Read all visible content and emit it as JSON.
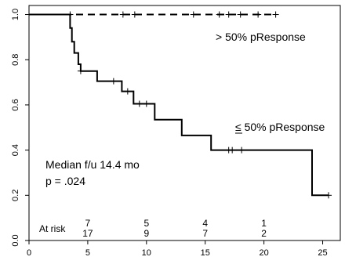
{
  "chart_data": {
    "type": "line",
    "xlim": [
      0,
      26.5
    ],
    "ylim": [
      0,
      1.04
    ],
    "x_ticks": [
      0,
      5,
      10,
      15,
      20,
      25
    ],
    "y_ticks": [
      0.0,
      0.2,
      0.4,
      0.6,
      0.8,
      1.0
    ],
    "x_tick_labels": [
      "0",
      "5",
      "10",
      "15",
      "20",
      "25"
    ],
    "y_tick_labels": [
      "0.0",
      "0.2",
      "0.4",
      "0.6",
      "0.8",
      "1.0"
    ],
    "grid": false,
    "series": [
      {
        "name": "> 50% pResponse",
        "style": "dashed",
        "color": "#000000",
        "steps": [
          [
            0,
            1.0
          ],
          [
            21,
            1.0
          ]
        ],
        "censored": [
          [
            3.5,
            1.0
          ],
          [
            8,
            1.0
          ],
          [
            9,
            1.0
          ],
          [
            14,
            1.0
          ],
          [
            16.2,
            1.0
          ],
          [
            17,
            1.0
          ],
          [
            18,
            1.0
          ],
          [
            19.5,
            1.0
          ],
          [
            21,
            1.0
          ]
        ]
      },
      {
        "name": "≤ 50% pResponse",
        "style": "solid",
        "color": "#000000",
        "steps": [
          [
            0,
            1.0
          ],
          [
            3.5,
            1.0
          ],
          [
            3.5,
            0.94
          ],
          [
            3.65,
            0.94
          ],
          [
            3.65,
            0.88
          ],
          [
            3.85,
            0.88
          ],
          [
            3.85,
            0.83
          ],
          [
            4.2,
            0.83
          ],
          [
            4.2,
            0.78
          ],
          [
            4.4,
            0.78
          ],
          [
            4.4,
            0.75
          ],
          [
            5.8,
            0.75
          ],
          [
            5.8,
            0.705
          ],
          [
            7.9,
            0.705
          ],
          [
            7.9,
            0.66
          ],
          [
            8.9,
            0.66
          ],
          [
            8.9,
            0.605
          ],
          [
            10.7,
            0.605
          ],
          [
            10.7,
            0.535
          ],
          [
            13.0,
            0.535
          ],
          [
            13.0,
            0.465
          ],
          [
            15.5,
            0.465
          ],
          [
            15.5,
            0.4
          ],
          [
            24.1,
            0.4
          ],
          [
            24.1,
            0.2
          ],
          [
            25.5,
            0.2
          ]
        ],
        "censored": [
          [
            4.4,
            0.75
          ],
          [
            7.2,
            0.705
          ],
          [
            8.4,
            0.66
          ],
          [
            9.4,
            0.605
          ],
          [
            10.0,
            0.605
          ],
          [
            17.0,
            0.4
          ],
          [
            17.3,
            0.4
          ],
          [
            18.1,
            0.4
          ],
          [
            25.5,
            0.2
          ]
        ]
      }
    ],
    "labels": {
      "upper_group": "> 50% pResponse",
      "lower_group": "≤ 50% pResponse",
      "median": "Median f/u 14.4 mo",
      "pvalue": "p = .024",
      "at_risk": "At risk"
    },
    "at_risk_times": [
      5,
      10,
      15,
      20
    ],
    "at_risk_upper": [
      "7",
      "5",
      "4",
      "1"
    ],
    "at_risk_lower": [
      "17",
      "9",
      "7",
      "2"
    ]
  }
}
